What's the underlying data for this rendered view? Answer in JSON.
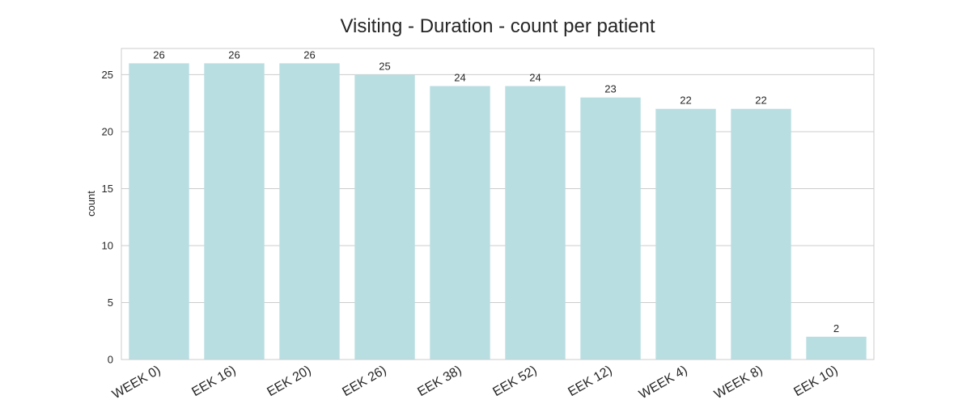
{
  "chart_data": {
    "type": "bar",
    "title": "Visiting - Duration - count per patient",
    "xlabel": "",
    "ylabel": "count",
    "categories": [
      "WEEK 0)",
      "EEK 16)",
      "EEK 20)",
      "EEK 26)",
      "EEK 38)",
      "EEK 52)",
      "EEK 12)",
      "WEEK 4)",
      "WEEK 8)",
      "EEK 10)"
    ],
    "values": [
      26,
      26,
      26,
      25,
      24,
      24,
      23,
      22,
      22,
      2
    ],
    "data_labels": [
      "26",
      "26",
      "26",
      "25",
      "24",
      "24",
      "23",
      "22",
      "22",
      "2"
    ],
    "ylim": [
      0,
      27.3
    ],
    "yticks": [
      0,
      5,
      10,
      15,
      20,
      25
    ],
    "ytick_labels": [
      "0",
      "5",
      "10",
      "15",
      "20",
      "25"
    ],
    "grid": true,
    "legend": "none",
    "bar_color": "#b9dee2",
    "grid_color": "#cccccc",
    "frame_color": "#cccccc",
    "text_color": "#262626"
  }
}
